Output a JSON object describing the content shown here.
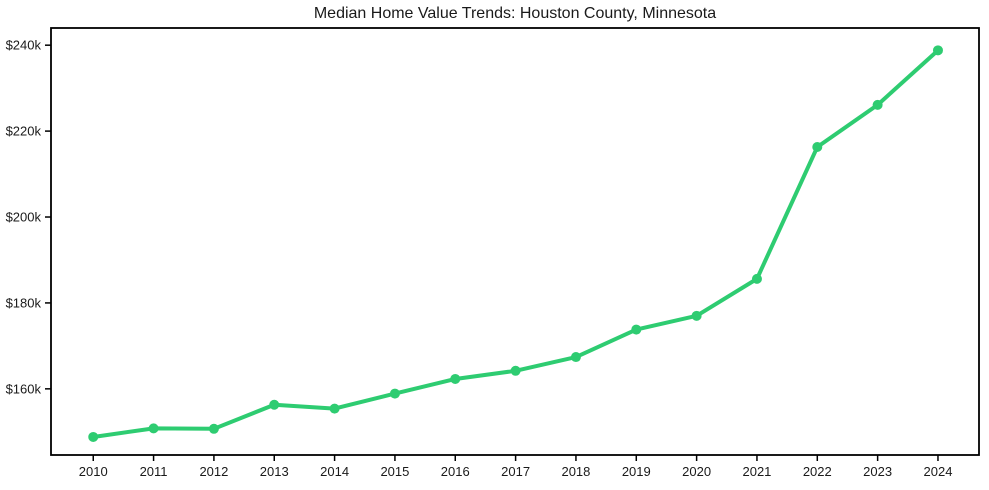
{
  "page": {
    "background": "#ffffff"
  },
  "chart_data": {
    "type": "line",
    "title": "Median Home Value Trends: Houston County, Minnesota",
    "x": [
      2010,
      2011,
      2012,
      2013,
      2014,
      2015,
      2016,
      2017,
      2018,
      2019,
      2020,
      2021,
      2022,
      2023,
      2024
    ],
    "series": [
      {
        "name": "Median Home Value",
        "values": [
          148800,
          150800,
          150700,
          156300,
          155400,
          158900,
          162300,
          164200,
          167400,
          173800,
          177000,
          185600,
          216300,
          226100,
          238800
        ],
        "color": "#2ecc71",
        "marker": "circle"
      }
    ],
    "xlabel": "",
    "ylabel": "",
    "xlim": [
      2009.3,
      2024.68
    ],
    "ylim": [
      144600,
      244000
    ],
    "xticks": [
      {
        "value": 2010,
        "label": "2010"
      },
      {
        "value": 2011,
        "label": "2011"
      },
      {
        "value": 2012,
        "label": "2012"
      },
      {
        "value": 2013,
        "label": "2013"
      },
      {
        "value": 2014,
        "label": "2014"
      },
      {
        "value": 2015,
        "label": "2015"
      },
      {
        "value": 2016,
        "label": "2016"
      },
      {
        "value": 2017,
        "label": "2017"
      },
      {
        "value": 2018,
        "label": "2018"
      },
      {
        "value": 2019,
        "label": "2019"
      },
      {
        "value": 2020,
        "label": "2020"
      },
      {
        "value": 2021,
        "label": "2021"
      },
      {
        "value": 2022,
        "label": "2022"
      },
      {
        "value": 2023,
        "label": "2023"
      },
      {
        "value": 2024,
        "label": "2024"
      }
    ],
    "yticks": [
      {
        "value": 160000,
        "label": "$160k"
      },
      {
        "value": 180000,
        "label": "$180k"
      },
      {
        "value": 200000,
        "label": "$200k"
      },
      {
        "value": 220000,
        "label": "$220k"
      },
      {
        "value": 240000,
        "label": "$240k"
      }
    ],
    "grid": false,
    "legend": null,
    "style": {
      "line_width": 4,
      "marker_radius": 5,
      "axis_color": "#000000",
      "text_color": "#1a1a1a",
      "spine_width": 1.8,
      "tick_length": 6
    }
  }
}
